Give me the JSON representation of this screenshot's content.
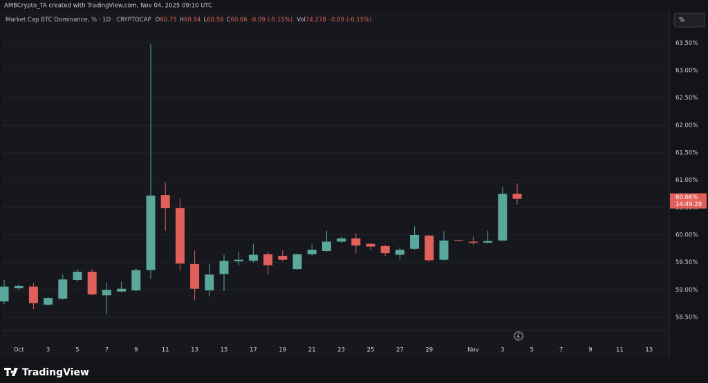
{
  "chart_data": {
    "type": "candlestick",
    "credit": "AMBCrypto_TA created with TradingView.com, Nov 04, 2025 09:10 UTC",
    "legend": {
      "title": "Market Cap BTC Dominance, % · 1D · CRYPTOCAP",
      "fields": [
        {
          "label": "O",
          "value": "60.75"
        },
        {
          "label": "H",
          "value": "60.94"
        },
        {
          "label": "L",
          "value": "60.56"
        },
        {
          "label": "C",
          "value": "60.66"
        }
      ],
      "change": "-0.09 (-0.15%)",
      "volume_label": "Vol",
      "volume": "74.27B",
      "volume_change": "-0.09 (-0.15%)"
    },
    "scale_button": "%",
    "last_price_label": "60.66%",
    "countdown": "14:49:29",
    "brand": "TradingView",
    "up_color": "#5aa89c",
    "down_color": "#e2605a",
    "categories": [
      null,
      "Oct",
      null,
      "3",
      null,
      "5",
      null,
      "7",
      null,
      "9",
      null,
      "11",
      null,
      "13",
      null,
      "15",
      null,
      "17",
      null,
      "19",
      null,
      "21",
      null,
      "23",
      null,
      "25",
      null,
      "27",
      null,
      "29",
      null,
      null,
      "Nov",
      null,
      "3",
      null,
      "5",
      null,
      "7",
      null,
      "9",
      null,
      "11",
      null,
      "13"
    ],
    "open": [
      58.79,
      59.03,
      59.06,
      58.73,
      58.84,
      59.18,
      59.33,
      58.9,
      58.97,
      58.99,
      59.36,
      60.73,
      60.49,
      59.47,
      58.99,
      59.29,
      59.52,
      59.53,
      59.65,
      59.62,
      59.38,
      59.65,
      59.71,
      59.88,
      59.94,
      59.84,
      59.8,
      59.64,
      59.75,
      59.99,
      59.55,
      59.91,
      59.88,
      59.86,
      59.9,
      60.75,
      null,
      null,
      null,
      null,
      null,
      null,
      null,
      null,
      null
    ],
    "high": [
      59.18,
      59.1,
      59.12,
      58.87,
      59.28,
      59.38,
      59.38,
      59.13,
      59.15,
      59.4,
      63.48,
      60.96,
      60.67,
      59.72,
      59.47,
      59.64,
      59.69,
      59.84,
      59.7,
      59.72,
      59.66,
      59.83,
      60.08,
      59.97,
      60.03,
      59.86,
      59.82,
      59.78,
      60.16,
      60.0,
      60.07,
      59.91,
      59.97,
      60.08,
      60.88,
      60.94,
      null,
      null,
      null,
      null,
      null,
      null,
      null,
      null,
      null
    ],
    "low": [
      58.74,
      59.0,
      58.65,
      58.71,
      58.82,
      59.15,
      58.9,
      58.55,
      58.96,
      58.98,
      59.2,
      60.08,
      59.35,
      58.81,
      58.88,
      58.98,
      59.45,
      59.5,
      59.28,
      59.52,
      59.37,
      59.63,
      59.69,
      59.86,
      59.67,
      59.72,
      59.62,
      59.54,
      59.73,
      59.52,
      59.53,
      59.89,
      59.82,
      59.85,
      59.88,
      60.56,
      null,
      null,
      null,
      null,
      null,
      null,
      null,
      null,
      null
    ],
    "close": [
      59.06,
      59.07,
      58.76,
      58.85,
      59.19,
      59.33,
      58.92,
      59.0,
      59.02,
      59.36,
      60.72,
      60.49,
      59.48,
      59.02,
      59.28,
      59.53,
      59.55,
      59.64,
      59.45,
      59.55,
      59.65,
      59.73,
      59.88,
      59.94,
      59.81,
      59.79,
      59.67,
      59.73,
      60.0,
      59.54,
      59.9,
      59.9,
      59.86,
      59.89,
      60.75,
      60.66,
      null,
      null,
      null,
      null,
      null,
      null,
      null,
      null,
      null
    ],
    "ylim": [
      58.26,
      64.11
    ],
    "yticks": [
      {
        "value": 58.5,
        "label": "58.50%"
      },
      {
        "value": 59.0,
        "label": "59.00%"
      },
      {
        "value": 59.5,
        "label": "59.50%"
      },
      {
        "value": 60.0,
        "label": "60.00%"
      },
      {
        "value": 60.5,
        "label": "60.50%"
      },
      {
        "value": 61.0,
        "label": "61.00%"
      },
      {
        "value": 61.5,
        "label": "61.50%"
      },
      {
        "value": 62.0,
        "label": "62.00%"
      },
      {
        "value": 62.5,
        "label": "62.50%"
      },
      {
        "value": 63.0,
        "label": "63.00%"
      },
      {
        "value": 63.5,
        "label": "63.50%"
      }
    ],
    "grid": true
  }
}
